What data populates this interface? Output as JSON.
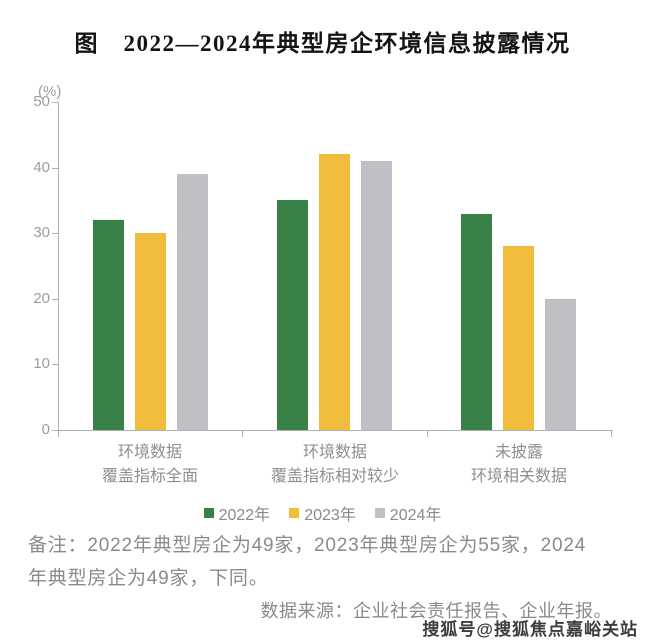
{
  "title": "图　2022—2024年典型房企环境信息披露情况",
  "chart_data": {
    "type": "bar",
    "title": "图　2022—2024年典型房企环境信息披露情况",
    "unit_label": "(%)",
    "xlabel": "",
    "ylabel": "(%)",
    "ylim": [
      0,
      50
    ],
    "yticks": [
      0,
      10,
      20,
      30,
      40,
      50
    ],
    "grid": false,
    "legend_position": "bottom",
    "categories": [
      [
        "环境数据",
        "覆盖指标全面"
      ],
      [
        "环境数据",
        "覆盖指标相对较少"
      ],
      [
        "未披露",
        "环境相关数据"
      ]
    ],
    "series": [
      {
        "name": "2022年",
        "color": "#388146",
        "values": [
          32,
          35,
          33
        ]
      },
      {
        "name": "2023年",
        "color": "#F0BC3B",
        "values": [
          30,
          42,
          28
        ]
      },
      {
        "name": "2024年",
        "color": "#BEC0C5",
        "values": [
          39,
          41,
          20
        ]
      }
    ],
    "axis_color": "#b0b0b0"
  },
  "note": {
    "lines": [
      "备注：2022年典型房企为49家，2023年典型房企为55家，2024",
      "年典型房企为49家，下同。"
    ]
  },
  "source": "数据来源：企业社会责任报告、企业年报。",
  "watermark": "搜狐号@搜狐焦点嘉峪关站"
}
